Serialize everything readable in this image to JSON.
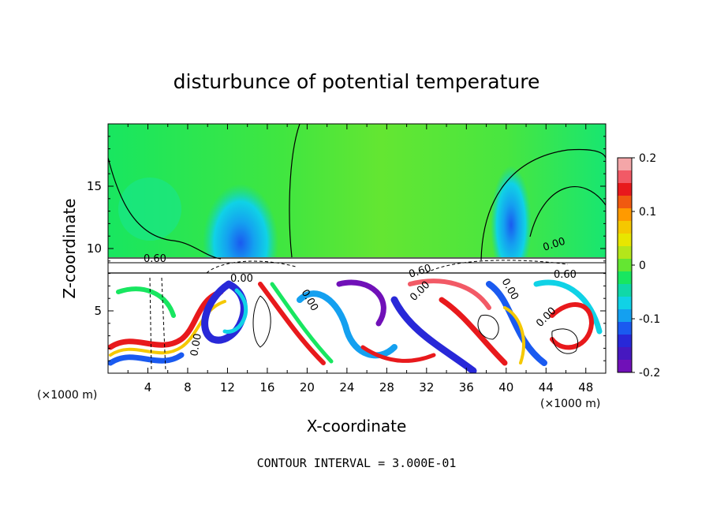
{
  "chart_data": {
    "type": "heatmap",
    "title": "disturbunce of potential temperature",
    "xlabel": "X-coordinate",
    "ylabel": "Z-coordinate",
    "x_unit_left": "(×1000 m)",
    "x_unit_right": "(×1000 m)",
    "xlim": [
      0,
      50
    ],
    "ylim": [
      0,
      20
    ],
    "x_ticks": [
      "4",
      "8",
      "12",
      "16",
      "20",
      "24",
      "28",
      "32",
      "36",
      "40",
      "44",
      "48"
    ],
    "y_ticks": [
      "5",
      "10",
      "15"
    ],
    "colorbar": {
      "range": [
        -0.2,
        0.2
      ],
      "ticks": [
        "0.2",
        "0.1",
        "0",
        "-0.1",
        "-0.2"
      ],
      "colors": [
        "#f4a6a8",
        "#f25a66",
        "#e8191c",
        "#f05a10",
        "#ff9a00",
        "#f5c800",
        "#e8e600",
        "#b4e61a",
        "#64e632",
        "#18e660",
        "#10d8a8",
        "#10d2e6",
        "#14a0f0",
        "#1a5af0",
        "#2828d8",
        "#4618c0",
        "#7010b8"
      ]
    },
    "contour_labels": [
      "0.60",
      "0.00",
      "0.00",
      "0.60",
      "0.00",
      "0.60",
      "0.00",
      "0.00",
      "0.00",
      "0.00"
    ],
    "footer": "CONTOUR INTERVAL = 3.000E-01"
  }
}
